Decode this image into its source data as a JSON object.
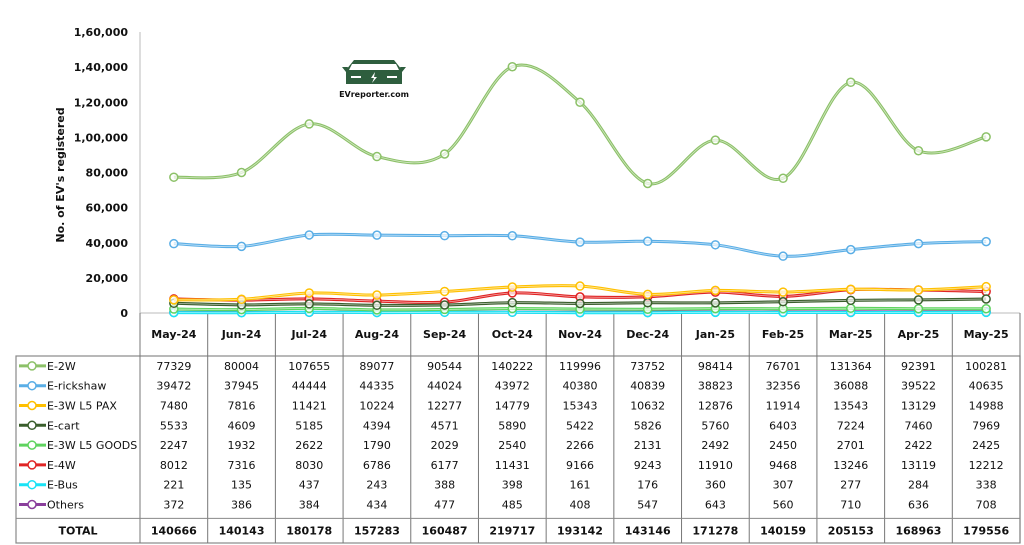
{
  "chart_data": {
    "type": "line",
    "title": "",
    "ylabel": "No. of EV's registered",
    "xlabel": "",
    "ylim": [
      0,
      160000
    ],
    "yticks": [
      0,
      20000,
      40000,
      60000,
      80000,
      100000,
      120000,
      140000,
      160000
    ],
    "ytick_labels": [
      "0",
      "20,000",
      "40,000",
      "60,000",
      "80,000",
      "1,00,000",
      "1,20,000",
      "1,40,000",
      "1,60,000"
    ],
    "grid": false,
    "legend": "data-table-below",
    "categories": [
      "May-24",
      "Jun-24",
      "Jul-24",
      "Aug-24",
      "Sep-24",
      "Oct-24",
      "Nov-24",
      "Dec-24",
      "Jan-25",
      "Feb-25",
      "Mar-25",
      "Apr-25",
      "May-25"
    ],
    "series": [
      {
        "name": "E-2W",
        "color": "#8cc168",
        "values": [
          77329,
          80004,
          107655,
          89077,
          90544,
          140222,
          119996,
          73752,
          98414,
          76701,
          131364,
          92391,
          100281
        ]
      },
      {
        "name": "E-rickshaw",
        "color": "#5aaee6",
        "values": [
          39472,
          37945,
          44444,
          44335,
          44024,
          43972,
          40380,
          40839,
          38823,
          32356,
          36088,
          39522,
          40635
        ]
      },
      {
        "name": "E-3W L5 PAX",
        "color": "#ffc000",
        "values": [
          7480,
          7816,
          11421,
          10224,
          12277,
          14779,
          15343,
          10632,
          12876,
          11914,
          13543,
          13129,
          14988
        ]
      },
      {
        "name": "E-cart",
        "color": "#3a5e2c",
        "values": [
          5533,
          4609,
          5185,
          4394,
          4571,
          5890,
          5422,
          5826,
          5760,
          6403,
          7224,
          7460,
          7969
        ]
      },
      {
        "name": "E-3W L5 GOODS",
        "color": "#5fd35f",
        "values": [
          2247,
          1932,
          2622,
          1790,
          2029,
          2540,
          2266,
          2131,
          2492,
          2450,
          2701,
          2422,
          2425
        ]
      },
      {
        "name": "E-4W",
        "color": "#e02424",
        "values": [
          8012,
          7316,
          8030,
          6786,
          6177,
          11431,
          9166,
          9243,
          11910,
          9468,
          13246,
          13119,
          12212
        ]
      },
      {
        "name": "E-Bus",
        "color": "#19e3f5",
        "values": [
          221,
          135,
          437,
          243,
          388,
          398,
          161,
          176,
          360,
          307,
          277,
          284,
          338
        ]
      },
      {
        "name": "Others",
        "color": "#8a3f9c",
        "values": [
          372,
          386,
          384,
          434,
          477,
          485,
          408,
          547,
          643,
          560,
          710,
          636,
          708
        ]
      }
    ],
    "total": {
      "label": "TOTAL",
      "values": [
        140666,
        140143,
        180178,
        157283,
        160487,
        219717,
        193142,
        143146,
        171278,
        140159,
        205153,
        168963,
        179556
      ]
    }
  },
  "logo": {
    "text": "EVreporter.com",
    "color": "#2e5e3e"
  }
}
